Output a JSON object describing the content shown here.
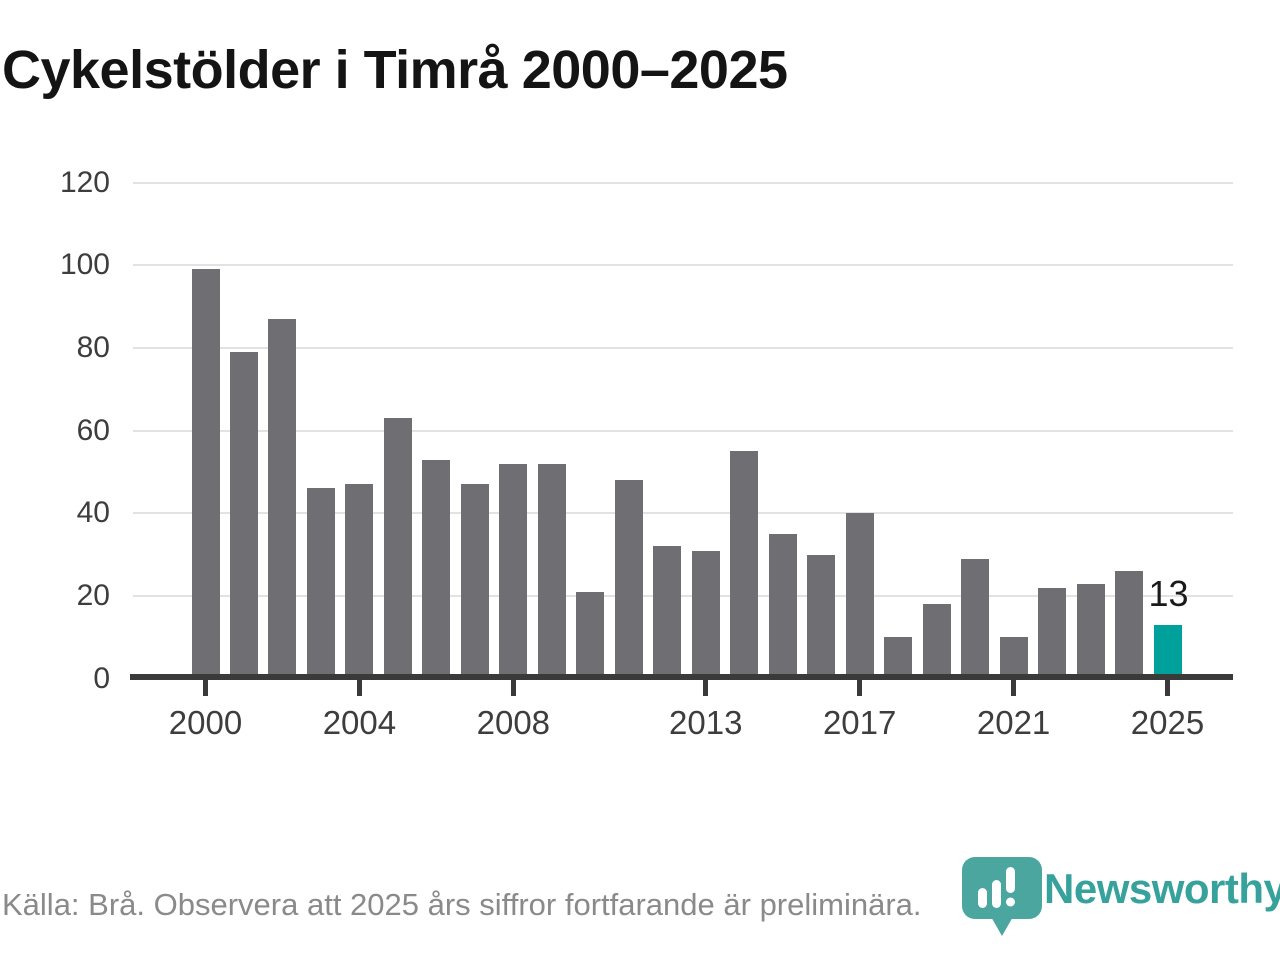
{
  "page": {
    "background": "#ffffff"
  },
  "title": "Cykelstölder i Timrå 2000–2025",
  "footer": {
    "source_note": "Källa: Brå. Observera att 2025 års siffror fortfarande är preliminära."
  },
  "branding": {
    "wordmark": "Newsworthy",
    "logo_icon": "newsworthy-pin-chart-icon",
    "brand_color": "#4ba6a0"
  },
  "colors": {
    "bar": "#6e6e73",
    "highlight": "#00a19b",
    "axis": "#3a3a3a",
    "gridline": "#e2e2e2",
    "tick_label": "#3d3d3d",
    "title_text": "#141414",
    "footer_text": "#8a8a8a"
  },
  "chart_data": {
    "type": "bar",
    "title": "Cykelstölder i Timrå 2000–2025",
    "categories": [
      2000,
      2001,
      2002,
      2003,
      2004,
      2005,
      2006,
      2007,
      2008,
      2009,
      2010,
      2011,
      2012,
      2013,
      2014,
      2015,
      2016,
      2017,
      2018,
      2019,
      2020,
      2021,
      2022,
      2023,
      2024,
      2025
    ],
    "values": [
      99,
      79,
      87,
      46,
      47,
      63,
      53,
      47,
      52,
      52,
      21,
      48,
      32,
      31,
      55,
      35,
      30,
      40,
      10,
      18,
      29,
      10,
      22,
      23,
      26,
      13
    ],
    "ylim": [
      0,
      120
    ],
    "yticks": [
      0,
      20,
      40,
      60,
      80,
      100,
      120
    ],
    "xticks": [
      2000,
      2004,
      2008,
      2013,
      2017,
      2021,
      2025
    ],
    "grid": true,
    "legend": false,
    "highlight": {
      "year": 2025,
      "label": "13"
    }
  }
}
